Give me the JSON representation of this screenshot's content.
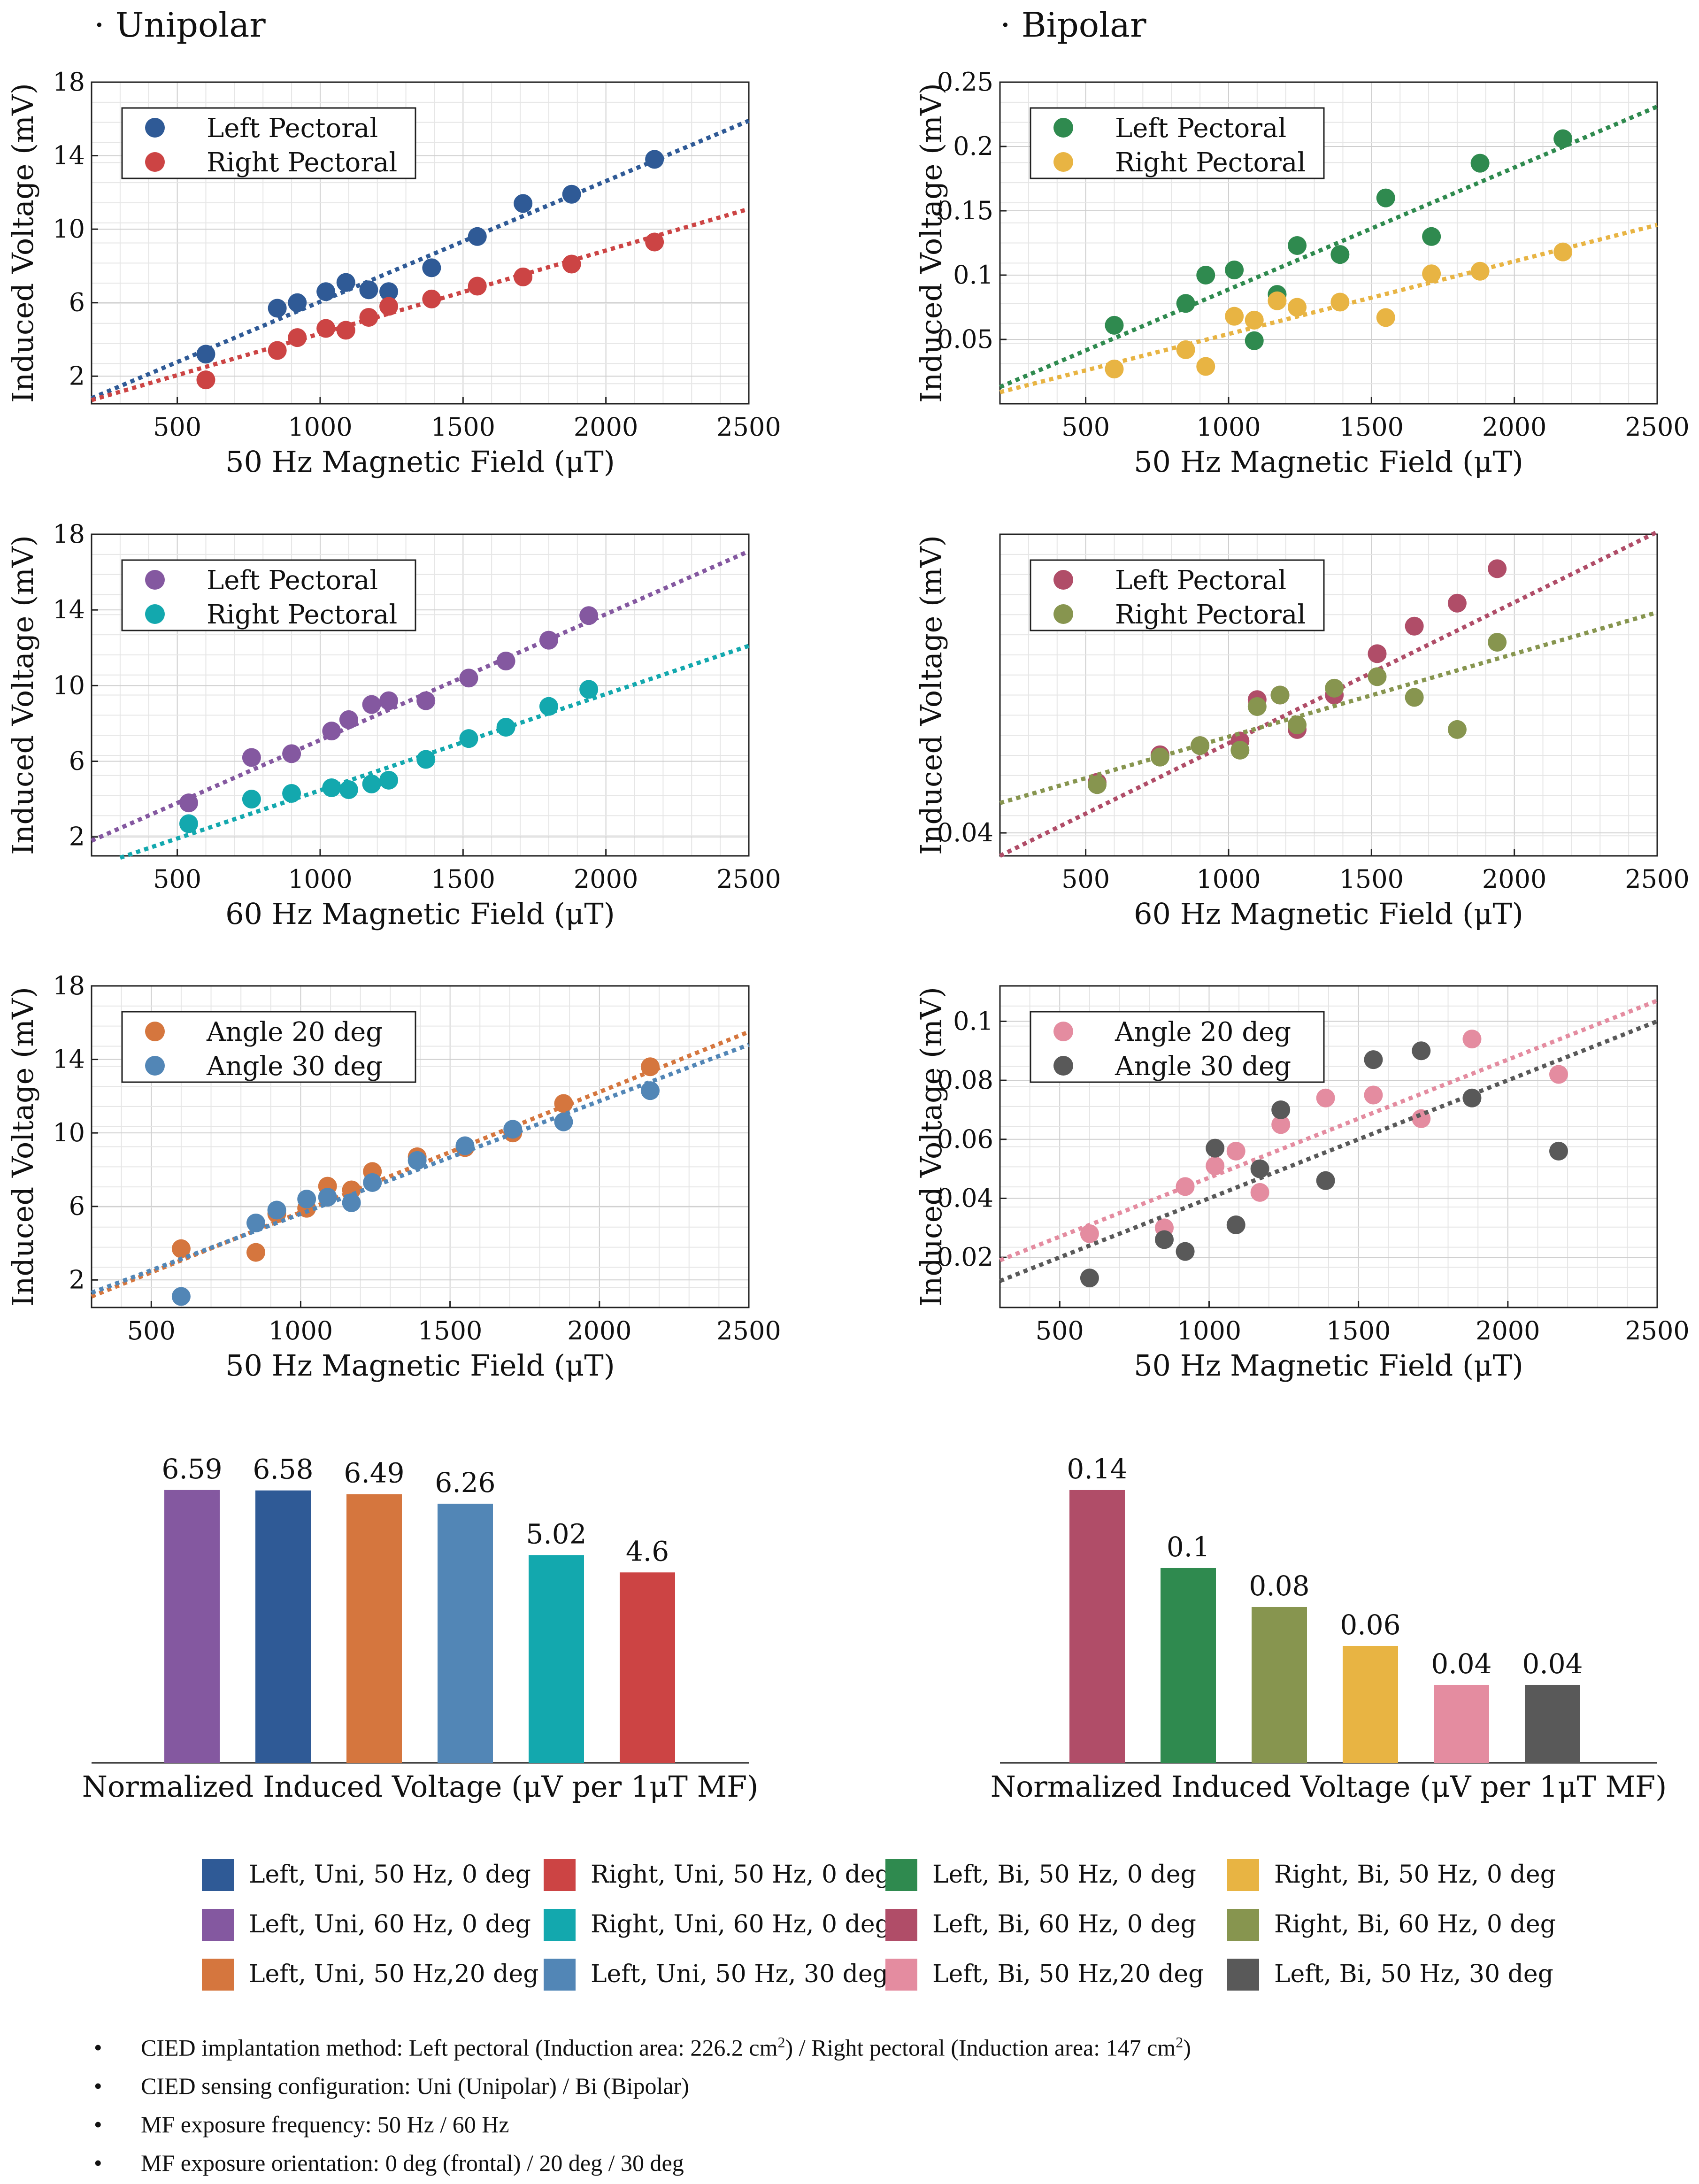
{
  "sections": {
    "left": "· Unipolar",
    "right": "· Bipolar"
  },
  "colors": {
    "left_uni_50": "#2f5a96",
    "right_uni_50": "#cc4444",
    "left_bi_50": "#2f8a4f",
    "right_bi_50": "#e8b443",
    "left_uni_60": "#8458a0",
    "right_uni_60": "#13a8ae",
    "left_bi_60": "#b04d68",
    "right_bi_60": "#87954f",
    "left_uni_20": "#d5763e",
    "left_uni_30": "#5286b6",
    "left_bi_20": "#e48ca0",
    "left_bi_30": "#595959"
  },
  "chart_data": [
    {
      "id": "uni50",
      "type": "scatter",
      "title": "",
      "xlabel": "50 Hz Magnetic Field (μT)",
      "ylabel": "Induced Voltage (mV)",
      "xlim": [
        200,
        2500
      ],
      "ylim": [
        0.5,
        18
      ],
      "xticks": [
        500,
        1000,
        1500,
        2000,
        2500
      ],
      "yticks": [
        2,
        6,
        10,
        14,
        18
      ],
      "ytick_labels": [
        "2",
        "6",
        "10",
        "14",
        "18"
      ],
      "grid": true,
      "legend": "top-left",
      "series": [
        {
          "name": "Left Pectoral",
          "color": "#2f5a96",
          "x": [
            600,
            850,
            920,
            1020,
            1090,
            1170,
            1240,
            1390,
            1550,
            1710,
            1880,
            2170
          ],
          "y": [
            3.2,
            5.7,
            6.0,
            6.6,
            7.1,
            6.7,
            6.6,
            7.9,
            9.6,
            11.4,
            11.9,
            13.8
          ],
          "fit": [
            [
              200,
              0.8
            ],
            [
              2500,
              15.9
            ]
          ]
        },
        {
          "name": "Right Pectoral",
          "color": "#cc4444",
          "x": [
            600,
            850,
            920,
            1020,
            1090,
            1170,
            1240,
            1390,
            1550,
            1710,
            1880,
            2170
          ],
          "y": [
            1.8,
            3.4,
            4.1,
            4.6,
            4.5,
            5.2,
            5.8,
            6.2,
            6.9,
            7.4,
            8.1,
            9.3
          ],
          "fit": [
            [
              200,
              0.7
            ],
            [
              2500,
              11.1
            ]
          ]
        }
      ]
    },
    {
      "id": "bi50",
      "type": "scatter",
      "title": "",
      "xlabel": "50 Hz Magnetic Field (μT)",
      "ylabel": "Induced Voltage (mV)",
      "xlim": [
        200,
        2500
      ],
      "ylim": [
        0,
        0.25
      ],
      "xticks": [
        500,
        1000,
        1500,
        2000,
        2500
      ],
      "yticks": [
        0.05,
        0.1,
        0.15,
        0.2,
        0.25
      ],
      "ytick_labels": [
        "0.05",
        "0.1",
        "0.15",
        "0.2",
        "0.25"
      ],
      "grid": true,
      "legend": "top-left",
      "series": [
        {
          "name": "Left Pectoral",
          "color": "#2f8a4f",
          "x": [
            600,
            850,
            920,
            1020,
            1090,
            1170,
            1240,
            1390,
            1550,
            1710,
            1880,
            2170
          ],
          "y": [
            0.061,
            0.078,
            0.1,
            0.104,
            0.049,
            0.085,
            0.123,
            0.116,
            0.16,
            0.13,
            0.187,
            0.206
          ],
          "fit": [
            [
              200,
              0.013
            ],
            [
              2500,
              0.231
            ]
          ]
        },
        {
          "name": "Right Pectoral",
          "color": "#e8b443",
          "x": [
            600,
            850,
            920,
            1020,
            1090,
            1170,
            1240,
            1390,
            1550,
            1710,
            1880,
            2170
          ],
          "y": [
            0.027,
            0.042,
            0.029,
            0.068,
            0.065,
            0.08,
            0.075,
            0.079,
            0.067,
            0.101,
            0.103,
            0.118
          ],
          "fit": [
            [
              200,
              0.009
            ],
            [
              2500,
              0.139
            ]
          ]
        }
      ]
    },
    {
      "id": "uni60",
      "type": "scatter",
      "title": "",
      "xlabel": "60 Hz Magnetic Field (μT)",
      "ylabel": "Induced Voltage (mV)",
      "xlim": [
        200,
        2500
      ],
      "ylim": [
        1,
        18
      ],
      "xticks": [
        500,
        1000,
        1500,
        2000,
        2500
      ],
      "yticks": [
        2,
        6,
        10,
        14,
        18
      ],
      "ytick_labels": [
        "2",
        "6",
        "10",
        "14",
        "18"
      ],
      "grid": true,
      "legend": "top-left",
      "series": [
        {
          "name": "Left Pectoral",
          "color": "#8458a0",
          "x": [
            540,
            760,
            900,
            1040,
            1100,
            1180,
            1240,
            1370,
            1520,
            1650,
            1800,
            1940
          ],
          "y": [
            3.8,
            6.2,
            6.4,
            7.6,
            8.2,
            9.0,
            9.2,
            9.2,
            10.4,
            11.3,
            12.4,
            13.7
          ],
          "fit": [
            [
              200,
              1.8
            ],
            [
              2500,
              17.1
            ]
          ]
        },
        {
          "name": "Right Pectoral",
          "color": "#13a8ae",
          "x": [
            540,
            760,
            900,
            1040,
            1100,
            1180,
            1240,
            1370,
            1520,
            1650,
            1800,
            1940
          ],
          "y": [
            2.7,
            4.0,
            4.3,
            4.6,
            4.5,
            4.8,
            5.0,
            6.1,
            7.2,
            7.8,
            8.9,
            9.8
          ],
          "fit": [
            [
              300,
              0.9
            ],
            [
              2500,
              12.1
            ]
          ]
        }
      ]
    },
    {
      "id": "bi60",
      "type": "scatter",
      "title": "",
      "xlabel": "60 Hz Magnetic Field (μT)",
      "ylabel": "Induced Voltage (mV)",
      "xlim": [
        200,
        2500
      ],
      "ylim": [
        0.03,
        0.17
      ],
      "xticks": [
        500,
        1000,
        1500,
        2000,
        2500
      ],
      "yticks": [
        0.04
      ],
      "ytick_labels": [
        "0.04"
      ],
      "grid": true,
      "legend": "top-left",
      "series": [
        {
          "name": "Left Pectoral",
          "color": "#b04d68",
          "x": [
            540,
            760,
            900,
            1040,
            1100,
            1180,
            1240,
            1370,
            1520,
            1650,
            1800,
            1940
          ],
          "y": [
            0.062,
            0.074,
            0.078,
            0.08,
            0.098,
            0.1,
            0.085,
            0.1,
            0.118,
            0.13,
            0.14,
            0.155
          ],
          "fit": [
            [
              200,
              0.03
            ],
            [
              2500,
              0.171
            ]
          ]
        },
        {
          "name": "Right Pectoral",
          "color": "#87954f",
          "x": [
            540,
            760,
            900,
            1040,
            1100,
            1180,
            1240,
            1370,
            1520,
            1650,
            1800,
            1940
          ],
          "y": [
            0.061,
            0.073,
            0.078,
            0.076,
            0.095,
            0.1,
            0.087,
            0.103,
            0.108,
            0.099,
            0.085,
            0.123
          ],
          "fit": [
            [
              200,
              0.053
            ],
            [
              2500,
              0.136
            ]
          ]
        }
      ]
    },
    {
      "id": "uni_angle",
      "type": "scatter",
      "title": "",
      "xlabel": "50 Hz Magnetic Field (μT)",
      "ylabel": "Induced Voltage (mV)",
      "xlim": [
        300,
        2500
      ],
      "ylim": [
        0.5,
        18
      ],
      "xticks": [
        500,
        1000,
        1500,
        2000,
        2500
      ],
      "yticks": [
        2,
        6,
        10,
        14,
        18
      ],
      "ytick_labels": [
        "2",
        "6",
        "10",
        "14",
        "18"
      ],
      "grid": true,
      "legend": "top-left",
      "series": [
        {
          "name": "Angle 20 deg",
          "color": "#d5763e",
          "x": [
            600,
            850,
            920,
            1020,
            1090,
            1170,
            1240,
            1390,
            1550,
            1710,
            1880,
            2170
          ],
          "y": [
            3.7,
            3.5,
            5.6,
            5.9,
            7.1,
            6.9,
            7.9,
            8.7,
            9.2,
            10.0,
            11.6,
            13.6
          ],
          "fit": [
            [
              300,
              1.1
            ],
            [
              2500,
              15.5
            ]
          ]
        },
        {
          "name": "Angle 30 deg",
          "color": "#5286b6",
          "x": [
            600,
            850,
            920,
            1020,
            1090,
            1170,
            1240,
            1390,
            1550,
            1710,
            1880,
            2170
          ],
          "y": [
            1.1,
            5.1,
            5.8,
            6.4,
            6.5,
            6.2,
            7.3,
            8.5,
            9.3,
            10.2,
            10.6,
            12.3
          ],
          "fit": [
            [
              300,
              1.3
            ],
            [
              2500,
              14.8
            ]
          ]
        }
      ]
    },
    {
      "id": "bi_angle",
      "type": "scatter",
      "title": "",
      "xlabel": "50 Hz Magnetic Field (μT)",
      "ylabel": "Induced Voltage (mV)",
      "xlim": [
        300,
        2500
      ],
      "ylim": [
        0.003,
        0.112
      ],
      "xticks": [
        500,
        1000,
        1500,
        2000,
        2500
      ],
      "yticks": [
        0.02,
        0.04,
        0.06,
        0.08,
        0.1
      ],
      "ytick_labels": [
        "0.02",
        "0.04",
        "0.06",
        "0.08",
        "0.1"
      ],
      "grid": true,
      "legend": "top-left",
      "series": [
        {
          "name": "Angle 20 deg",
          "color": "#e48ca0",
          "x": [
            600,
            850,
            920,
            1020,
            1090,
            1170,
            1240,
            1390,
            1550,
            1710,
            1880,
            2170
          ],
          "y": [
            0.028,
            0.03,
            0.044,
            0.051,
            0.056,
            0.042,
            0.065,
            0.074,
            0.075,
            0.067,
            0.094,
            0.082
          ],
          "fit": [
            [
              300,
              0.019
            ],
            [
              2500,
              0.107
            ]
          ]
        },
        {
          "name": "Angle 30 deg",
          "color": "#595959",
          "x": [
            600,
            850,
            920,
            1020,
            1090,
            1170,
            1240,
            1390,
            1550,
            1710,
            1880,
            2170
          ],
          "y": [
            0.013,
            0.026,
            0.022,
            0.057,
            0.031,
            0.05,
            0.07,
            0.046,
            0.087,
            0.09,
            0.074,
            0.056
          ],
          "fit": [
            [
              300,
              0.012
            ],
            [
              2500,
              0.1
            ]
          ]
        }
      ]
    },
    {
      "id": "bar_uni",
      "type": "bar",
      "title": "",
      "xlabel": "Normalized Induced Voltage (μV per 1μT MF)",
      "ylabel": "",
      "ylim": [
        0,
        7.2
      ],
      "categories": [
        "Left, Uni, 60 Hz, 0 deg",
        "Left, Uni, 50 Hz, 0 deg",
        "Left, Uni, 50 Hz,20 deg",
        "Left, Uni, 50 Hz, 30 deg",
        "Right, Uni, 60 Hz, 0 deg",
        "Right, Uni, 50 Hz, 0 deg"
      ],
      "values": [
        6.59,
        6.58,
        6.49,
        6.26,
        5.02,
        4.6
      ],
      "labels": [
        "6.59",
        "6.58",
        "6.49",
        "6.26",
        "5.02",
        "4.6"
      ],
      "colors": [
        "#8458a0",
        "#2f5a96",
        "#d5763e",
        "#5286b6",
        "#13a8ae",
        "#cc4444"
      ]
    },
    {
      "id": "bar_bi",
      "type": "bar",
      "title": "",
      "xlabel": "Normalized Induced Voltage (μV per 1μT MF)",
      "ylabel": "",
      "ylim": [
        0,
        0.153
      ],
      "categories": [
        "Left, Bi, 60 Hz, 0 deg",
        "Left, Bi, 50 Hz, 0 deg",
        "Right, Bi, 60 Hz, 0 deg",
        "Right, Bi, 50 Hz, 0 deg",
        "Left, Bi, 50 Hz,20 deg",
        "Left, Bi, 50 Hz, 30 deg"
      ],
      "values": [
        0.14,
        0.1,
        0.08,
        0.06,
        0.04,
        0.04
      ],
      "labels": [
        "0.14",
        "0.1",
        "0.08",
        "0.06",
        "0.04",
        "0.04"
      ],
      "colors": [
        "#b04d68",
        "#2f8a4f",
        "#87954f",
        "#e8b443",
        "#e48ca0",
        "#595959"
      ]
    }
  ],
  "legend_items": [
    {
      "label": "Left, Uni, 50 Hz, 0 deg",
      "color": "#2f5a96"
    },
    {
      "label": "Right, Uni, 50 Hz, 0 deg",
      "color": "#cc4444"
    },
    {
      "label": "Left, Bi, 50 Hz, 0 deg",
      "color": "#2f8a4f"
    },
    {
      "label": "Right, Bi, 50 Hz, 0 deg",
      "color": "#e8b443"
    },
    {
      "label": "Left, Uni, 60 Hz, 0 deg",
      "color": "#8458a0"
    },
    {
      "label": "Right, Uni, 60 Hz, 0 deg",
      "color": "#13a8ae"
    },
    {
      "label": "Left, Bi, 60 Hz, 0 deg",
      "color": "#b04d68"
    },
    {
      "label": "Right, Bi, 60 Hz, 0 deg",
      "color": "#87954f"
    },
    {
      "label": "Left, Uni, 50 Hz,20 deg",
      "color": "#d5763e"
    },
    {
      "label": "Left, Uni, 50 Hz, 30 deg",
      "color": "#5286b6"
    },
    {
      "label": "Left, Bi, 50 Hz,20 deg",
      "color": "#e48ca0"
    },
    {
      "label": "Left, Bi, 50 Hz, 30 deg",
      "color": "#595959"
    }
  ],
  "notes": {
    "bullet": "•",
    "n1_a": "CIED implantation method: Left pectoral (Induction area: 226.2 cm",
    "n1_sup1": "2",
    "n1_b": ") / Right pectoral (Induction area: 147 cm",
    "n1_sup2": "2",
    "n1_c": ")",
    "n2": "CIED sensing configuration: Uni (Unipolar) / Bi (Bipolar)",
    "n3": "MF exposure frequency: 50 Hz / 60 Hz",
    "n4": "MF exposure orientation: 0 deg (frontal) / 20 deg / 30 deg"
  }
}
